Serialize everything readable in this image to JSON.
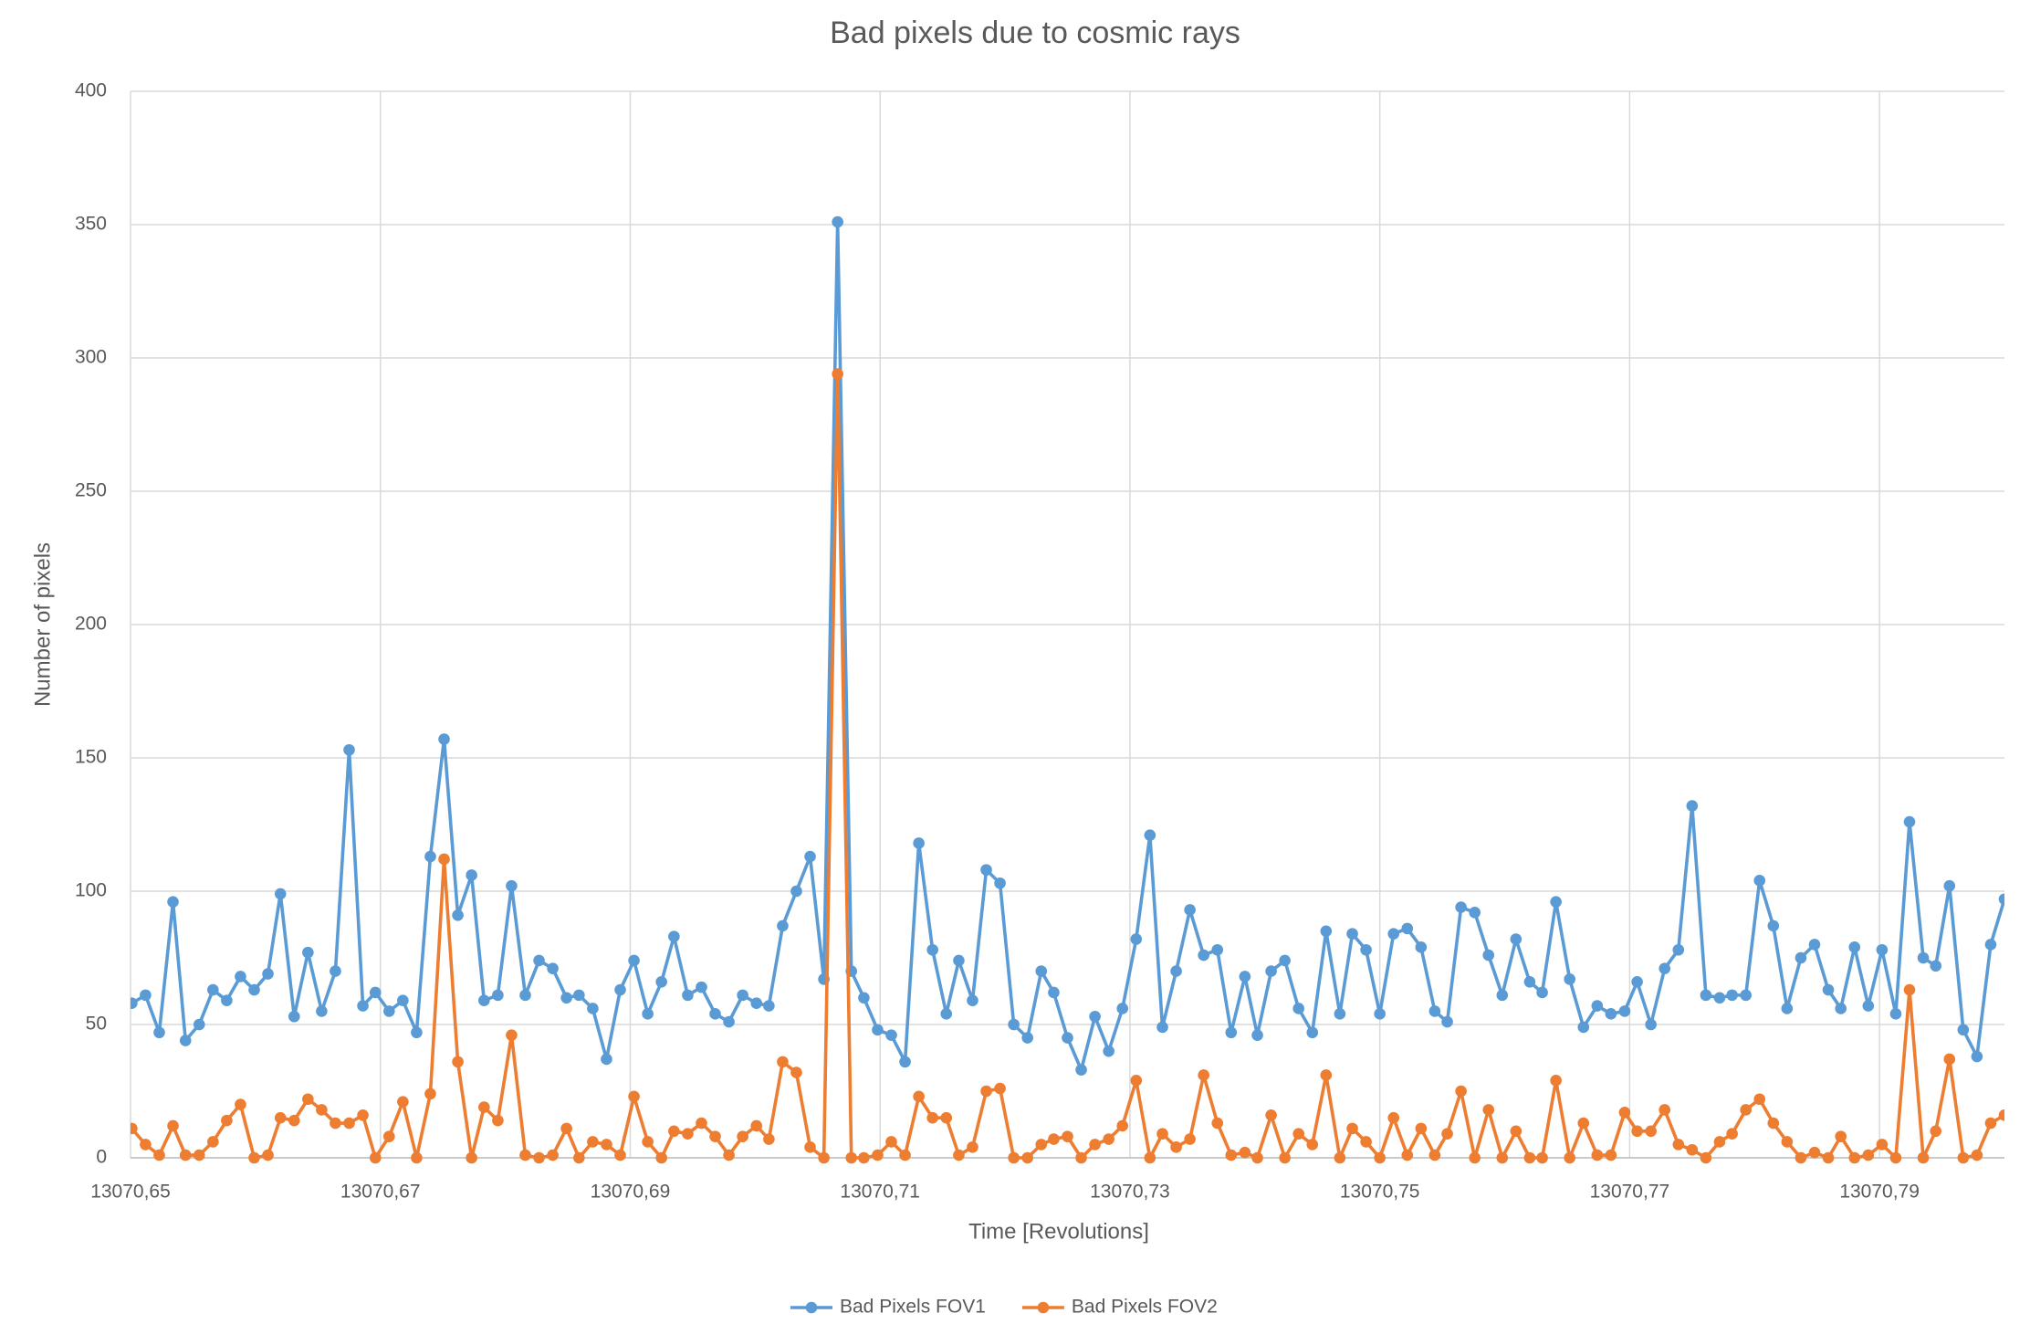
{
  "chart_data": {
    "type": "line",
    "title": "Bad pixels due to cosmic rays",
    "x_label": "Time [Revolutions]",
    "y_label": "Number of pixels",
    "x": [
      13070.6501,
      13070.6512,
      13070.6523,
      13070.6534,
      13070.6544,
      13070.6555,
      13070.6566,
      13070.6577,
      13070.6588,
      13070.6599,
      13070.661,
      13070.662,
      13070.6631,
      13070.6642,
      13070.6653,
      13070.6664,
      13070.6675,
      13070.6686,
      13070.6696,
      13070.6707,
      13070.6718,
      13070.6729,
      13070.674,
      13070.6751,
      13070.6762,
      13070.6773,
      13070.6783,
      13070.6794,
      13070.6805,
      13070.6816,
      13070.6827,
      13070.6838,
      13070.6849,
      13070.6859,
      13070.687,
      13070.6881,
      13070.6892,
      13070.6903,
      13070.6914,
      13070.6925,
      13070.6935,
      13070.6946,
      13070.6957,
      13070.6968,
      13070.6979,
      13070.699,
      13070.7001,
      13070.7011,
      13070.7022,
      13070.7033,
      13070.7044,
      13070.7055,
      13070.7066,
      13070.7077,
      13070.7087,
      13070.7098,
      13070.7109,
      13070.712,
      13070.7131,
      13070.7142,
      13070.7153,
      13070.7163,
      13070.7174,
      13070.7185,
      13070.7196,
      13070.7207,
      13070.7218,
      13070.7229,
      13070.7239,
      13070.725,
      13070.7261,
      13070.7272,
      13070.7283,
      13070.7294,
      13070.7305,
      13070.7316,
      13070.7326,
      13070.7337,
      13070.7348,
      13070.7359,
      13070.737,
      13070.7381,
      13070.7392,
      13070.7402,
      13070.7413,
      13070.7424,
      13070.7435,
      13070.7446,
      13070.7457,
      13070.7468,
      13070.7478,
      13070.7489,
      13070.75,
      13070.7511,
      13070.7522,
      13070.7533,
      13070.7544,
      13070.7554,
      13070.7565,
      13070.7576,
      13070.7587,
      13070.7598,
      13070.7609,
      13070.762,
      13070.763,
      13070.7641,
      13070.7652,
      13070.7663,
      13070.7674,
      13070.7685,
      13070.7696,
      13070.7706,
      13070.7717,
      13070.7728,
      13070.7739,
      13070.775,
      13070.7761,
      13070.7772,
      13070.7782,
      13070.7793,
      13070.7804,
      13070.7815,
      13070.7826,
      13070.7837,
      13070.7848,
      13070.7859,
      13070.7869,
      13070.788,
      13070.7891,
      13070.7902,
      13070.7913,
      13070.7924,
      13070.7935,
      13070.7945,
      13070.7956,
      13070.7967,
      13070.7978,
      13070.7989,
      13070.8
    ],
    "series": [
      {
        "name": "Bad Pixels FOV1",
        "color": "#5b9bd5",
        "values": [
          58,
          61,
          47,
          96,
          44,
          50,
          63,
          59,
          68,
          63,
          69,
          99,
          53,
          77,
          55,
          70,
          153,
          57,
          62,
          55,
          59,
          47,
          113,
          157,
          91,
          106,
          59,
          61,
          102,
          61,
          74,
          71,
          60,
          61,
          56,
          37,
          63,
          74,
          54,
          66,
          83,
          61,
          64,
          54,
          51,
          61,
          58,
          57,
          87,
          100,
          113,
          67,
          351,
          70,
          60,
          48,
          46,
          36,
          118,
          78,
          54,
          74,
          59,
          108,
          103,
          50,
          45,
          70,
          62,
          45,
          33,
          53,
          40,
          56,
          82,
          121,
          49,
          70,
          93,
          76,
          78,
          47,
          68,
          46,
          70,
          74,
          56,
          47,
          85,
          54,
          84,
          78,
          54,
          84,
          86,
          79,
          55,
          51,
          94,
          92,
          76,
          61,
          82,
          66,
          62,
          96,
          67,
          49,
          57,
          54,
          55,
          66,
          50,
          71,
          78,
          132,
          61,
          60,
          61,
          61,
          104,
          87,
          56,
          75,
          80,
          63,
          56,
          79,
          57,
          78,
          54,
          126,
          75,
          72,
          102,
          48,
          38,
          80,
          97
        ]
      },
      {
        "name": "Bad Pixels FOV2",
        "color": "#ed7d31",
        "values": [
          11,
          5,
          1,
          12,
          1,
          1,
          6,
          14,
          20,
          0,
          1,
          15,
          14,
          22,
          18,
          13,
          13,
          16,
          0,
          8,
          21,
          0,
          24,
          112,
          36,
          0,
          19,
          14,
          46,
          1,
          0,
          1,
          11,
          0,
          6,
          5,
          1,
          23,
          6,
          0,
          10,
          9,
          13,
          8,
          1,
          8,
          12,
          7,
          36,
          32,
          4,
          0,
          294,
          0,
          0,
          1,
          6,
          1,
          23,
          15,
          15,
          1,
          4,
          25,
          26,
          0,
          0,
          5,
          7,
          8,
          0,
          5,
          7,
          12,
          29,
          0,
          9,
          4,
          7,
          31,
          13,
          1,
          2,
          0,
          16,
          0,
          9,
          5,
          31,
          0,
          11,
          6,
          0,
          15,
          1,
          11,
          1,
          9,
          25,
          0,
          18,
          0,
          10,
          0,
          0,
          29,
          0,
          13,
          1,
          1,
          17,
          10,
          10,
          18,
          5,
          3,
          0,
          6,
          9,
          18,
          22,
          13,
          6,
          0,
          2,
          0,
          8,
          0,
          1,
          5,
          0,
          63,
          0,
          10,
          37,
          0,
          1,
          13,
          16
        ]
      }
    ],
    "xlim": [
      13070.65,
      13070.8
    ],
    "xticks": [
      {
        "value": 13070.65,
        "label": "13070,65"
      },
      {
        "value": 13070.67,
        "label": "13070,67"
      },
      {
        "value": 13070.69,
        "label": "13070,69"
      },
      {
        "value": 13070.71,
        "label": "13070,71"
      },
      {
        "value": 13070.73,
        "label": "13070,73"
      },
      {
        "value": 13070.75,
        "label": "13070,75"
      },
      {
        "value": 13070.77,
        "label": "13070,77"
      },
      {
        "value": 13070.79,
        "label": "13070,79"
      }
    ],
    "ylim": [
      0,
      400
    ],
    "yticks": [
      0,
      50,
      100,
      150,
      200,
      250,
      300,
      350,
      400
    ],
    "grid": true,
    "legend": "bottom"
  }
}
